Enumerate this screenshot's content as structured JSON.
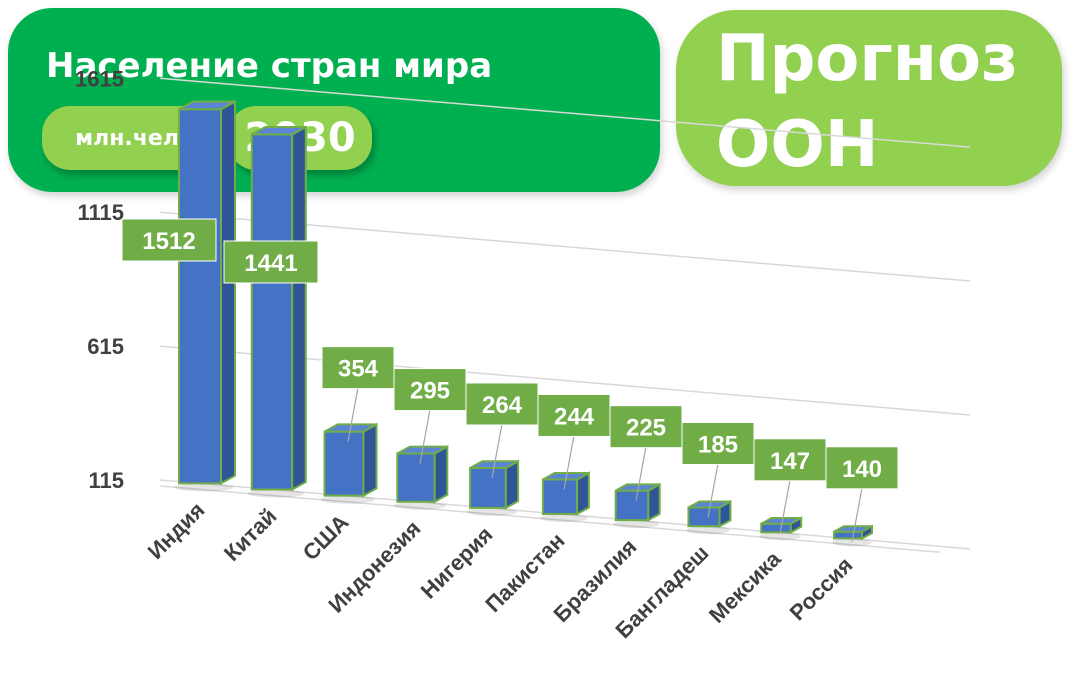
{
  "header": {
    "title": "Население стран мира",
    "unit": "млн.чел",
    "year": "2030"
  },
  "forecast": {
    "line1": "Прогноз",
    "line2": "ООН"
  },
  "colors": {
    "header_bg": "#00B050",
    "pill_bg": "#92D050",
    "forecast_bg": "#92D050",
    "bar_front": "#4472C4",
    "bar_side": "#2F5597",
    "bar_top": "#5B85D4",
    "bar_outline": "#70AD47",
    "label_bg": "#70AD47",
    "axis_text": "#404040",
    "grid": "#D9D9D9"
  },
  "chart_data": {
    "type": "bar",
    "title": "",
    "xlabel": "",
    "ylabel": "",
    "categories": [
      "Индия",
      "Китай",
      "США",
      "Индонезия",
      "Нигерия",
      "Пакистан",
      "Бразилия",
      "Бангладеш",
      "Мексика",
      "Россия"
    ],
    "values": [
      1512,
      1441,
      354,
      295,
      264,
      244,
      225,
      185,
      147,
      140
    ],
    "ylim": [
      115,
      1615
    ],
    "yticks": [
      "115",
      "615",
      "1115",
      "1615"
    ],
    "grid": true,
    "data_labels": true,
    "legend": "none"
  }
}
